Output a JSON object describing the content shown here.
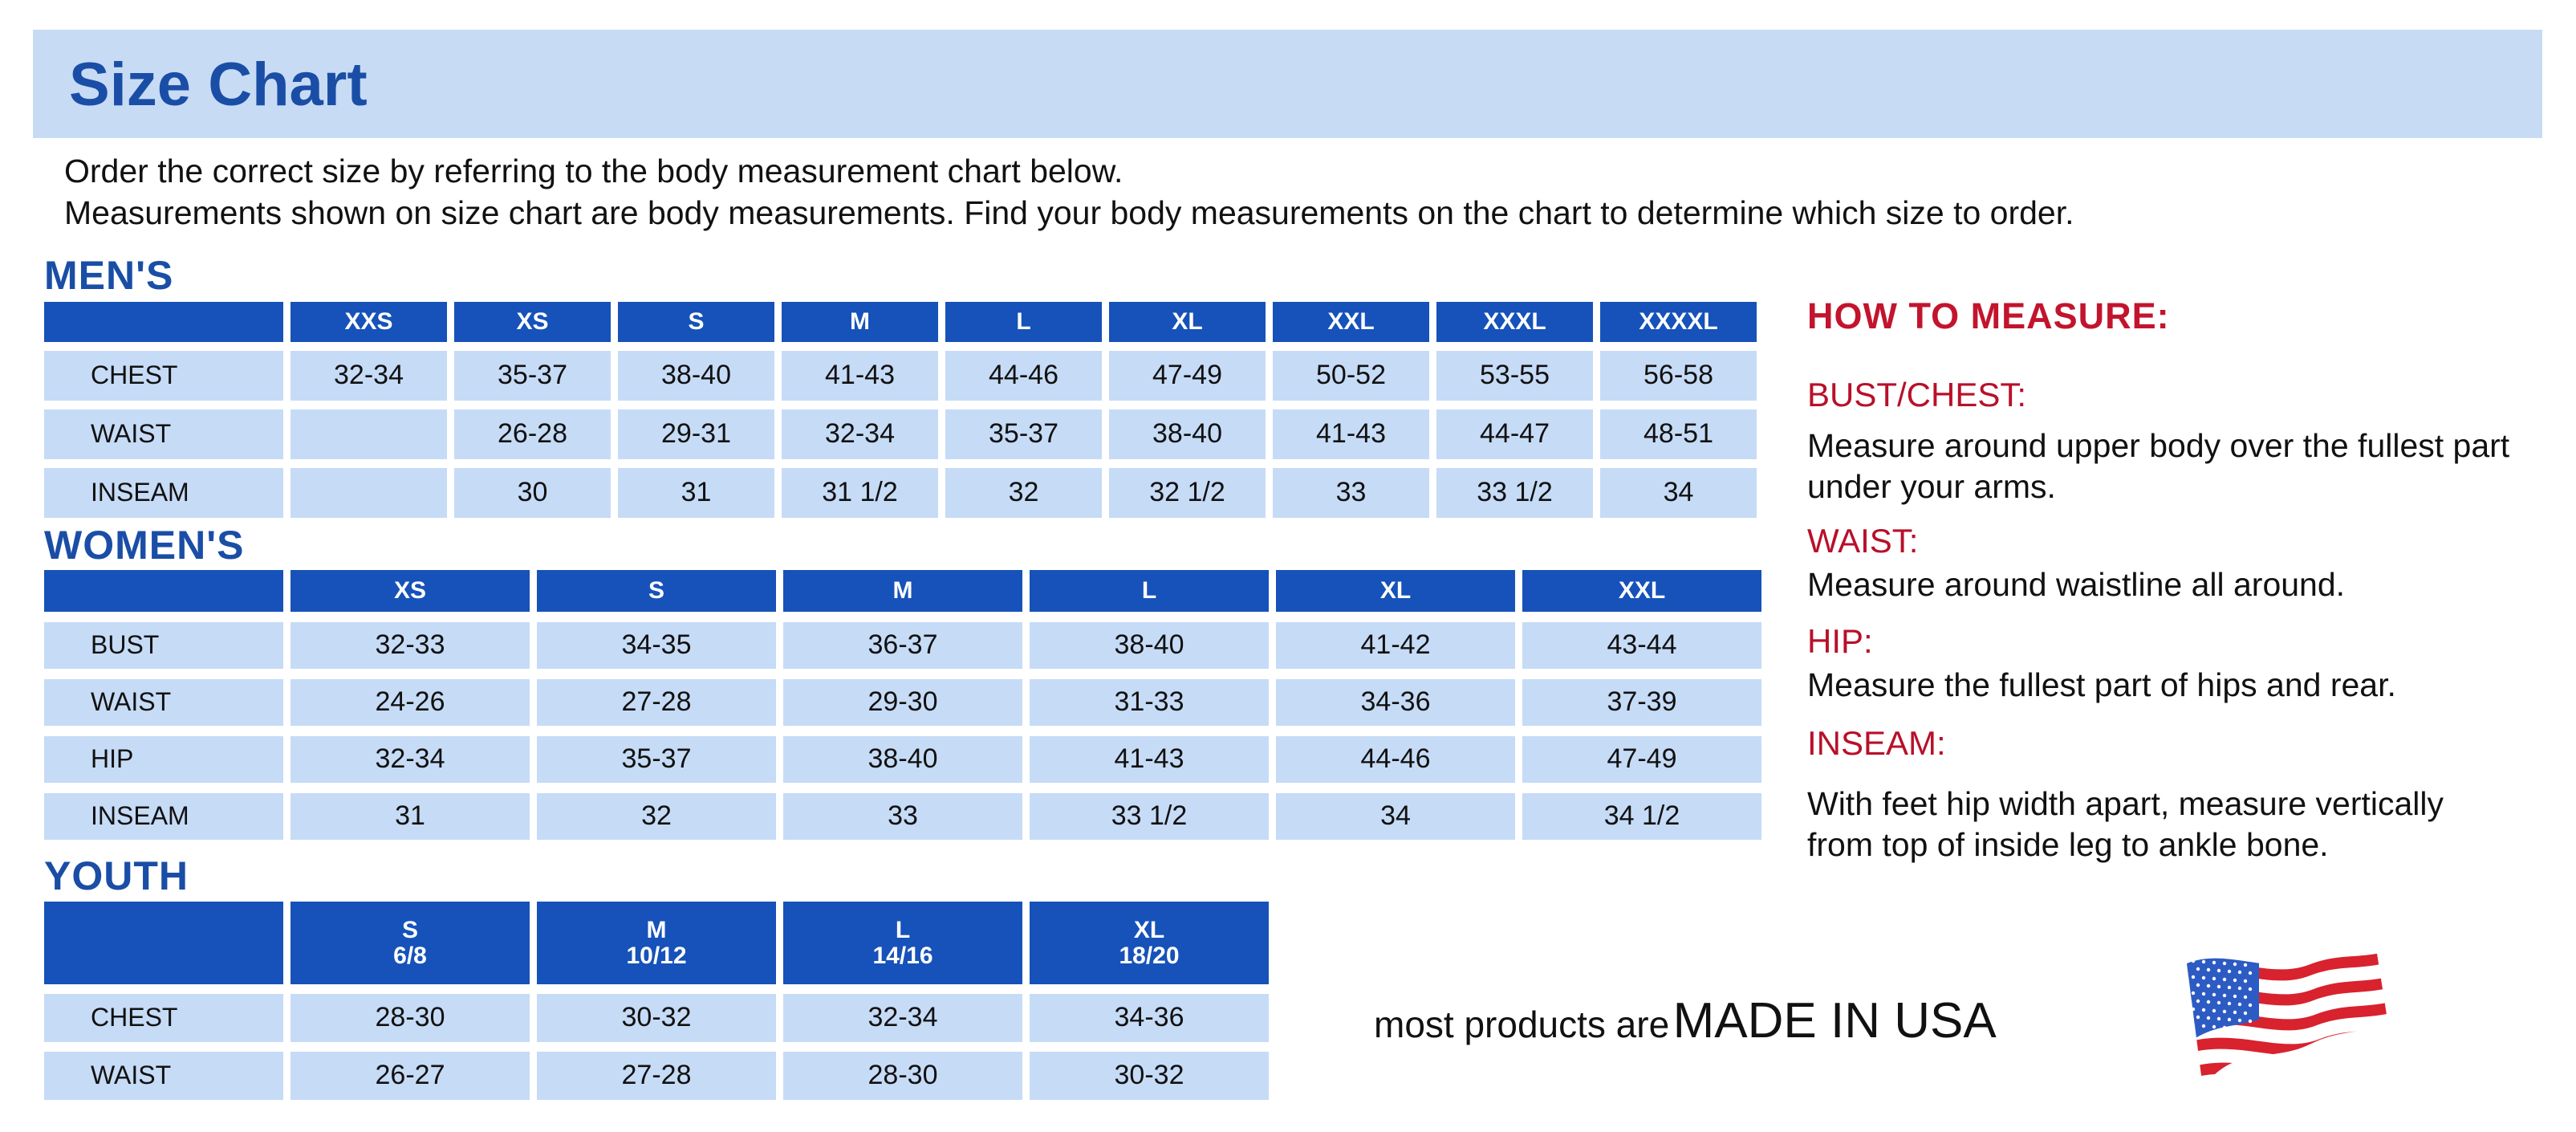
{
  "title": "Size Chart",
  "intro": [
    "Order the correct size by referring to the body measurement chart below.",
    "Measurements shown on size chart are body measurements.  Find your body measurements on the chart to determine which size to order."
  ],
  "colors": {
    "header_blue": "#1652b9",
    "cell_blue": "#c6dbf6",
    "title_blue": "#1a4ea6",
    "measure_red": "#c3142d"
  },
  "mens": {
    "label": "MEN'S",
    "headers": [
      "XXS",
      "XS",
      "S",
      "M",
      "L",
      "XL",
      "XXL",
      "XXXL",
      "XXXXL"
    ],
    "rows": [
      {
        "label": "CHEST",
        "values": [
          "32-34",
          "35-37",
          "38-40",
          "41-43",
          "44-46",
          "47-49",
          "50-52",
          "53-55",
          "56-58"
        ]
      },
      {
        "label": "WAIST",
        "values": [
          "",
          "26-28",
          "29-31",
          "32-34",
          "35-37",
          "38-40",
          "41-43",
          "44-47",
          "48-51"
        ]
      },
      {
        "label": "INSEAM",
        "values": [
          "",
          "30",
          "31",
          "31 1/2",
          "32",
          "32 1/2",
          "33",
          "33 1/2",
          "34"
        ]
      }
    ]
  },
  "womens": {
    "label": "WOMEN'S",
    "headers": [
      "XS",
      "S",
      "M",
      "L",
      "XL",
      "XXL"
    ],
    "rows": [
      {
        "label": "BUST",
        "values": [
          "32-33",
          "34-35",
          "36-37",
          "38-40",
          "41-42",
          "43-44"
        ]
      },
      {
        "label": "WAIST",
        "values": [
          "24-26",
          "27-28",
          "29-30",
          "31-33",
          "34-36",
          "37-39"
        ]
      },
      {
        "label": "HIP",
        "values": [
          "32-34",
          "35-37",
          "38-40",
          "41-43",
          "44-46",
          "47-49"
        ]
      },
      {
        "label": "INSEAM",
        "values": [
          "31",
          "32",
          "33",
          "33 1/2",
          "34",
          "34 1/2"
        ]
      }
    ]
  },
  "youth": {
    "label": "YOUTH",
    "headers": [
      [
        "S",
        "6/8"
      ],
      [
        "M",
        "10/12"
      ],
      [
        "L",
        "14/16"
      ],
      [
        "XL",
        "18/20"
      ]
    ],
    "rows": [
      {
        "label": "CHEST",
        "values": [
          "28-30",
          "30-32",
          "32-34",
          "34-36"
        ]
      },
      {
        "label": "WAIST",
        "values": [
          "26-27",
          "27-28",
          "28-30",
          "30-32"
        ]
      }
    ]
  },
  "how_to_measure": {
    "title": "HOW TO MEASURE:",
    "items": [
      {
        "heading": "BUST/CHEST:",
        "text": "Measure around upper body over the fullest part under your arms."
      },
      {
        "heading": "WAIST:",
        "text": "Measure around waistline all around."
      },
      {
        "heading": "HIP:",
        "text": "Measure the fullest part of hips and rear."
      },
      {
        "heading": "INSEAM:",
        "text": "With feet hip width apart, measure vertically from top of inside leg to ankle bone."
      }
    ]
  },
  "made_in_usa": {
    "prefix": "most products are",
    "emphasis": "MADE IN USA",
    "icon": "american-flag-icon"
  }
}
